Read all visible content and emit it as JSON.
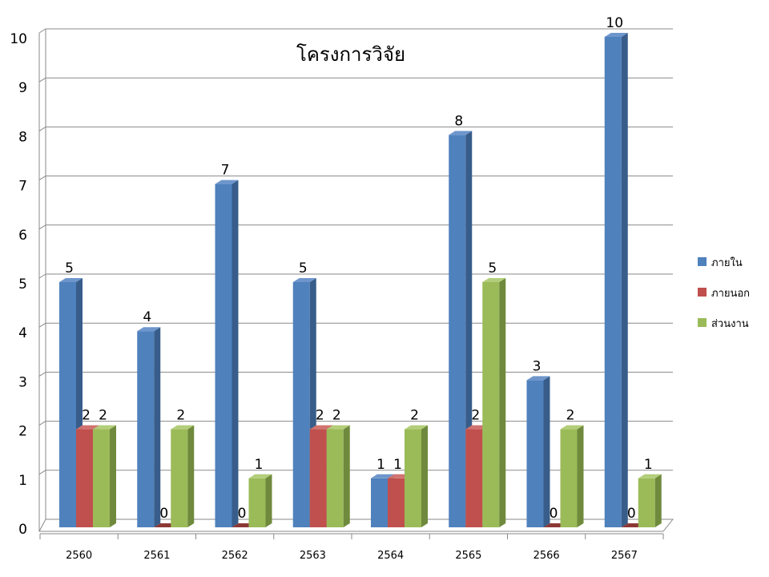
{
  "chart_data": {
    "type": "bar",
    "title": "โครงการวิจัย",
    "categories": [
      "2560",
      "2561",
      "2562",
      "2563",
      "2564",
      "2565",
      "2566",
      "2567"
    ],
    "series": [
      {
        "name": "ภายใน",
        "values": [
          5,
          4,
          7,
          5,
          1,
          8,
          3,
          10
        ],
        "color": "#4F81BD",
        "dark": "#385D8A",
        "light": "#6E96CC"
      },
      {
        "name": "ภายนอก",
        "values": [
          2,
          0,
          0,
          2,
          1,
          2,
          0,
          0
        ],
        "color": "#C0504D",
        "dark": "#8C3836",
        "light": "#D07370"
      },
      {
        "name": "ส่วนงาน",
        "values": [
          2,
          2,
          1,
          2,
          2,
          5,
          2,
          1
        ],
        "color": "#9BBB59",
        "dark": "#6F8A3C",
        "light": "#B3CE7A"
      }
    ],
    "ylim": [
      0,
      10
    ],
    "yticks": [
      0,
      1,
      2,
      3,
      4,
      5,
      6,
      7,
      8,
      9,
      10
    ],
    "grid": true,
    "legend_position": "right",
    "data_labels": true
  }
}
